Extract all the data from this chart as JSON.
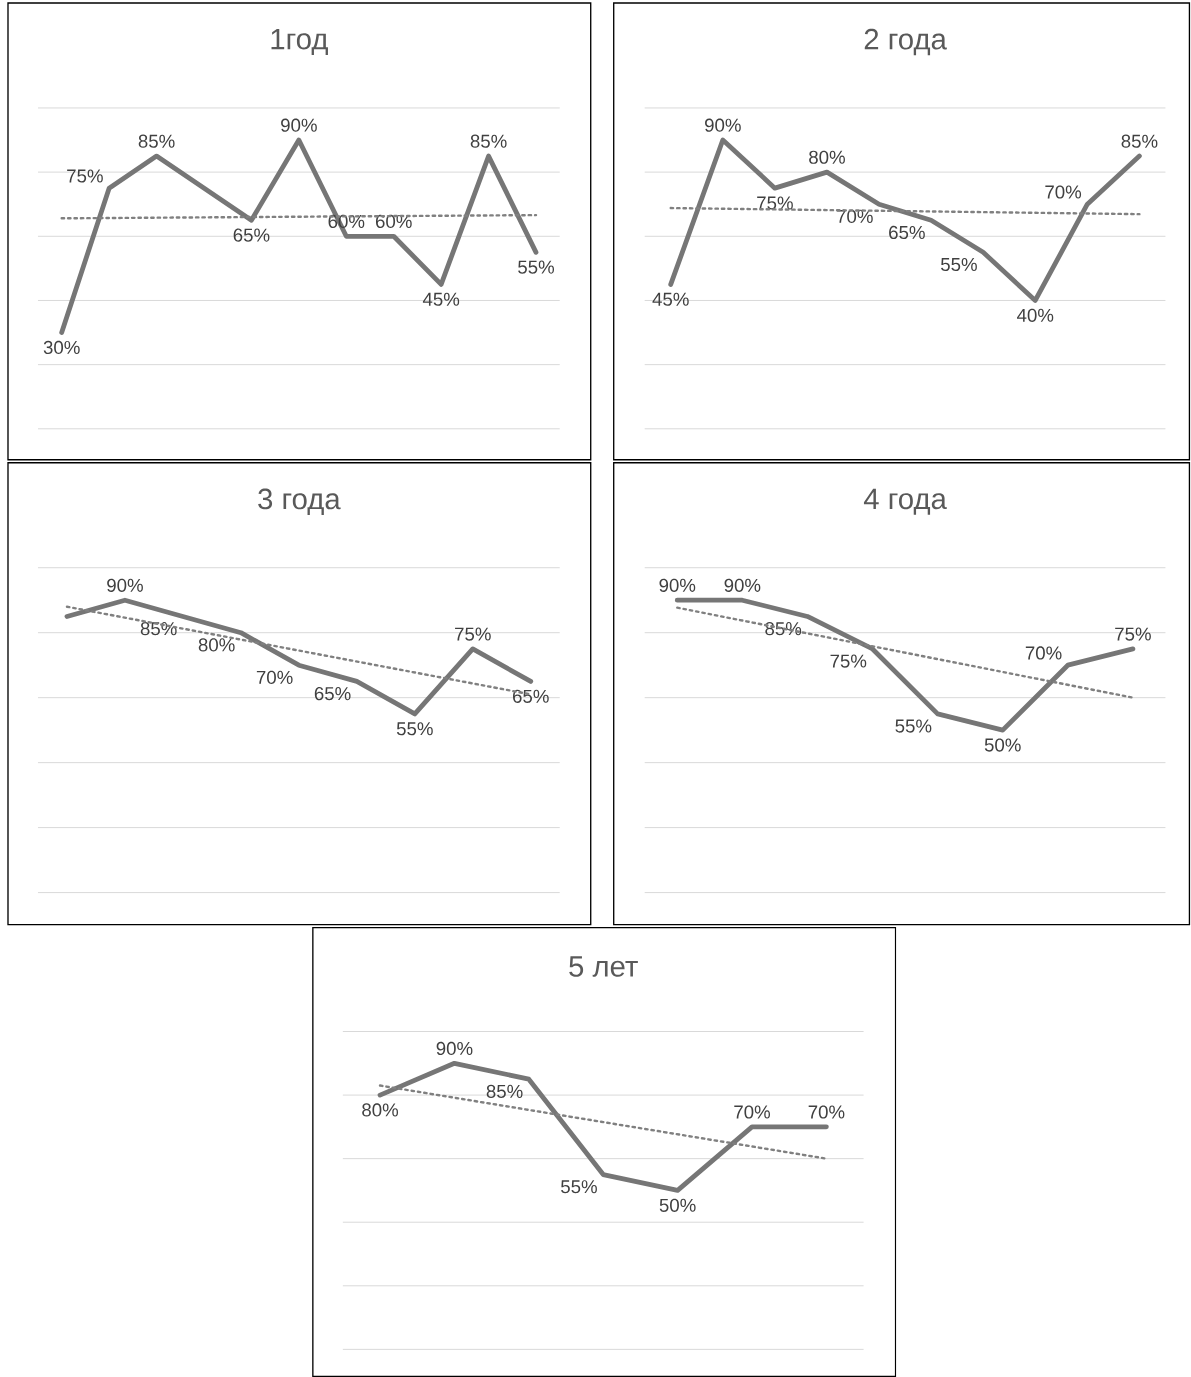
{
  "chart_data": [
    {
      "type": "line",
      "title": "1год",
      "categories": [
        null,
        null,
        null,
        null,
        null,
        null,
        null,
        null,
        null,
        null,
        null
      ],
      "ylim": [
        0,
        100
      ],
      "yticks": [
        {
          "value": 0,
          "label": null
        },
        {
          "value": 20,
          "label": null
        },
        {
          "value": 40,
          "label": null
        },
        {
          "value": 60,
          "label": null
        },
        {
          "value": 80,
          "label": null
        },
        {
          "value": 100,
          "label": null
        }
      ],
      "grid": "y",
      "series": [
        {
          "color": "#767676",
          "line_style": "solid",
          "values": [
            30,
            75,
            85,
            null,
            65,
            90,
            60,
            60,
            45,
            85,
            55
          ],
          "value_labels": [
            "30%",
            "75%",
            "85%",
            null,
            "65%",
            "90%",
            "60%",
            "60%",
            "45%",
            "85%",
            "55%"
          ]
        },
        {
          "type": "line",
          "color": "#808080",
          "line_style": "dotted",
          "values": [
            65.6,
            null,
            null,
            null,
            null,
            null,
            null,
            null,
            null,
            null,
            66.6
          ]
        }
      ]
    },
    {
      "type": "line",
      "title": "2 года",
      "categories": [
        null,
        null,
        null,
        null,
        null,
        null,
        null,
        null,
        null,
        null
      ],
      "ylim": [
        0,
        100
      ],
      "yticks": [
        {
          "value": 0,
          "label": null
        },
        {
          "value": 20,
          "label": null
        },
        {
          "value": 40,
          "label": null
        },
        {
          "value": 60,
          "label": null
        },
        {
          "value": 80,
          "label": null
        },
        {
          "value": 100,
          "label": null
        }
      ],
      "grid": "y",
      "series": [
        {
          "color": "#767676",
          "line_style": "solid",
          "values": [
            45,
            90,
            75,
            80,
            70,
            65,
            55,
            40,
            70,
            85
          ],
          "value_labels": [
            "45%",
            "90%",
            "75%",
            "80%",
            "70%",
            "65%",
            "55%",
            "40%",
            "70%",
            "85%"
          ]
        },
        {
          "type": "line",
          "color": "#808080",
          "line_style": "dotted",
          "values": [
            68.8,
            null,
            null,
            null,
            null,
            null,
            null,
            null,
            null,
            66.9
          ]
        }
      ]
    },
    {
      "type": "line",
      "title": "3 года",
      "categories": [
        null,
        null,
        null,
        null,
        null,
        null,
        null,
        null,
        null
      ],
      "ylim": [
        0,
        100
      ],
      "yticks": [
        {
          "value": 0,
          "label": null
        },
        {
          "value": 20,
          "label": null
        },
        {
          "value": 40,
          "label": null
        },
        {
          "value": 60,
          "label": null
        },
        {
          "value": 80,
          "label": null
        },
        {
          "value": 100,
          "label": null
        }
      ],
      "grid": "y",
      "series": [
        {
          "color": "#767676",
          "line_style": "solid",
          "values": [
            85,
            90,
            85,
            80,
            70,
            65,
            55,
            75,
            65
          ],
          "value_labels": [
            null,
            "90%",
            "85%",
            "80%",
            "70%",
            "65%",
            "55%",
            "75%",
            "65%"
          ]
        },
        {
          "type": "line",
          "color": "#808080",
          "line_style": "dotted",
          "values": [
            88,
            null,
            null,
            null,
            null,
            null,
            null,
            null,
            61
          ]
        }
      ]
    },
    {
      "type": "line",
      "title": "4 года",
      "categories": [
        null,
        null,
        null,
        null,
        null,
        null,
        null,
        null
      ],
      "ylim": [
        0,
        100
      ],
      "yticks": [
        {
          "value": 0,
          "label": null
        },
        {
          "value": 20,
          "label": null
        },
        {
          "value": 40,
          "label": null
        },
        {
          "value": 60,
          "label": null
        },
        {
          "value": 80,
          "label": null
        },
        {
          "value": 100,
          "label": null
        }
      ],
      "grid": "y",
      "series": [
        {
          "color": "#767676",
          "line_style": "solid",
          "values": [
            90,
            90,
            85,
            75,
            55,
            50,
            70,
            75
          ],
          "value_labels": [
            "90%",
            "90%",
            "85%",
            "75%",
            "55%",
            "50%",
            "70%",
            "75%"
          ]
        },
        {
          "type": "line",
          "color": "#808080",
          "line_style": "dotted",
          "values": [
            87.7,
            null,
            null,
            null,
            null,
            null,
            null,
            60
          ]
        }
      ]
    },
    {
      "type": "line",
      "title": "5 лет",
      "categories": [
        null,
        null,
        null,
        null,
        null,
        null,
        null
      ],
      "ylim": [
        0,
        100
      ],
      "yticks": [
        {
          "value": 0,
          "label": null
        },
        {
          "value": 20,
          "label": null
        },
        {
          "value": 40,
          "label": null
        },
        {
          "value": 60,
          "label": null
        },
        {
          "value": 80,
          "label": null
        },
        {
          "value": 100,
          "label": null
        }
      ],
      "grid": "y",
      "series": [
        {
          "color": "#767676",
          "line_style": "solid",
          "values": [
            80,
            90,
            85,
            55,
            50,
            70,
            70
          ],
          "value_labels": [
            "80%",
            "90%",
            "85%",
            "55%",
            "50%",
            "70%",
            "70%"
          ]
        },
        {
          "type": "line",
          "color": "#808080",
          "line_style": "dotted",
          "values": [
            83,
            null,
            null,
            null,
            null,
            null,
            60
          ]
        }
      ]
    }
  ]
}
